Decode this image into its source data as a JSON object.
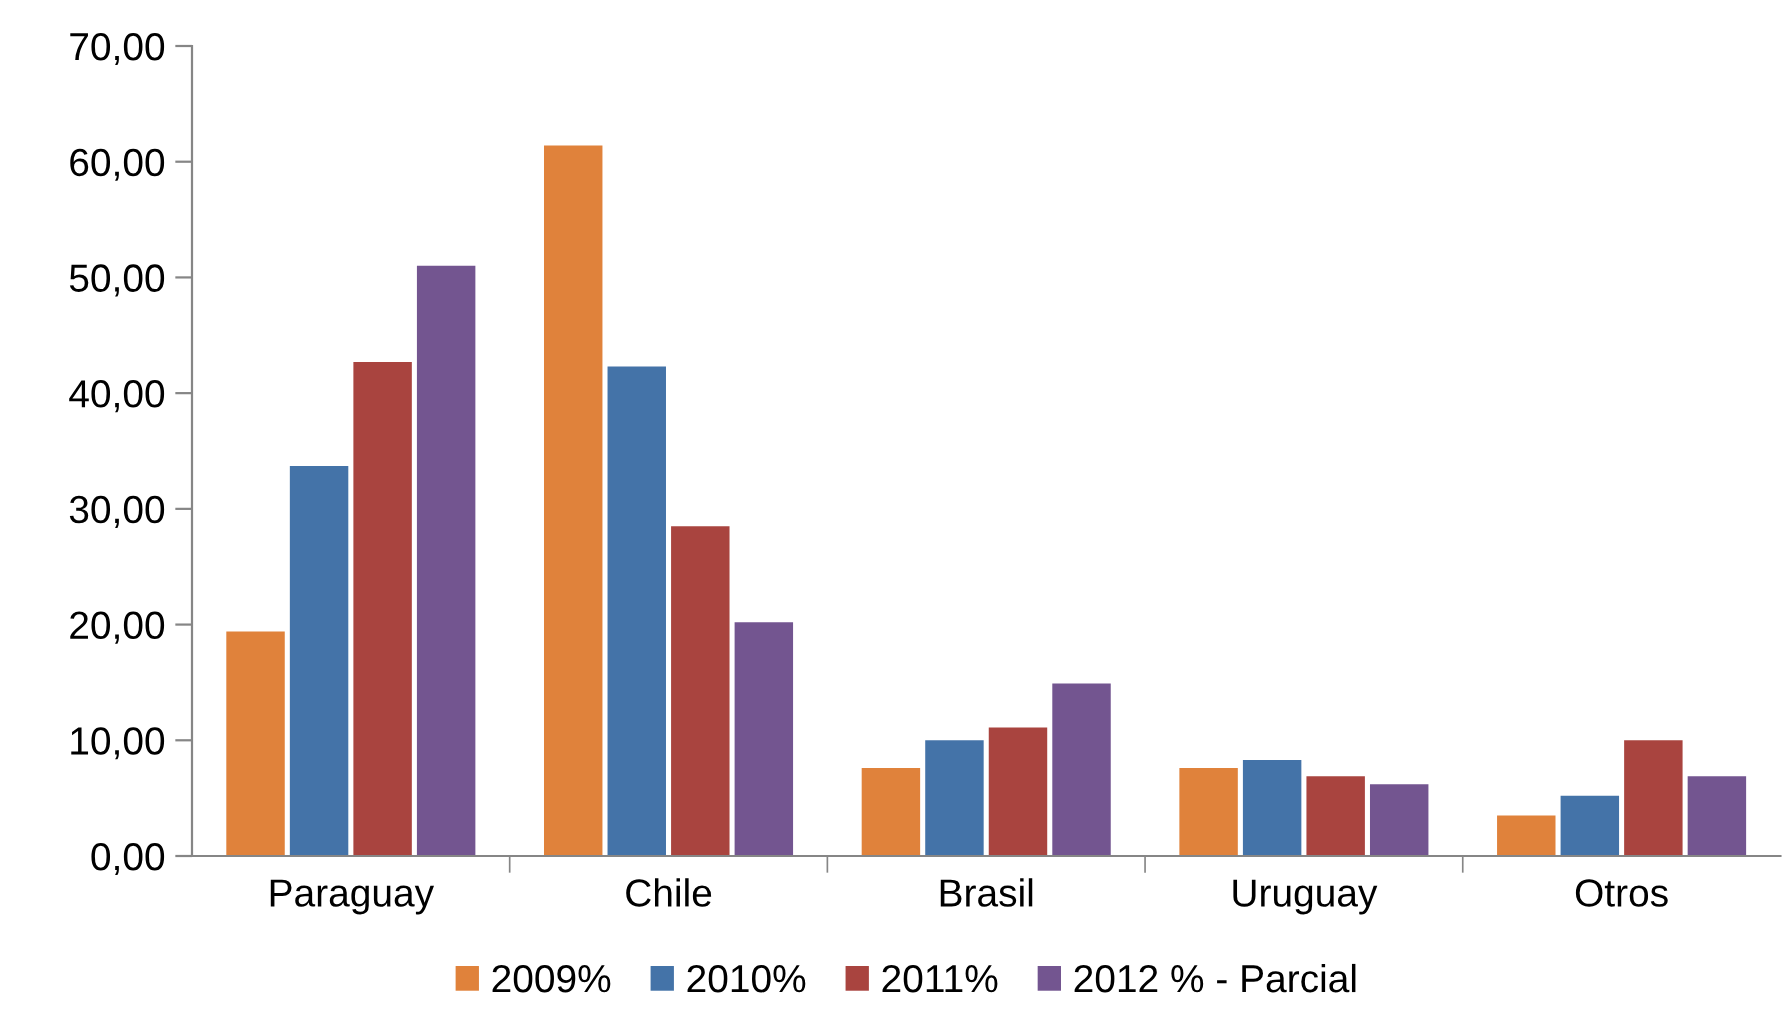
{
  "chart_data": {
    "type": "bar",
    "categories": [
      "Paraguay",
      "Chile",
      "Brasil",
      "Uruguay",
      "Otros"
    ],
    "series": [
      {
        "name": "2009%",
        "color": "#e0823b",
        "values": [
          19.4,
          61.4,
          7.6,
          7.6,
          3.5
        ]
      },
      {
        "name": "2010%",
        "color": "#4473a8",
        "values": [
          33.7,
          42.3,
          10.0,
          8.3,
          5.2
        ]
      },
      {
        "name": "2011%",
        "color": "#a9443f",
        "values": [
          42.7,
          28.5,
          11.1,
          6.9,
          10.0
        ]
      },
      {
        "name": "2012 % - Parcial",
        "color": "#735590",
        "values": [
          51.0,
          20.2,
          14.9,
          6.2,
          6.9
        ]
      }
    ],
    "ylim": [
      0,
      70
    ],
    "yticks": [
      {
        "value": 0,
        "label": "0,00"
      },
      {
        "value": 10,
        "label": "10,00"
      },
      {
        "value": 20,
        "label": "20,00"
      },
      {
        "value": 30,
        "label": "30,00"
      },
      {
        "value": 40,
        "label": "40,00"
      },
      {
        "value": 50,
        "label": "50,00"
      },
      {
        "value": 60,
        "label": "60,00"
      },
      {
        "value": 70,
        "label": "70,00"
      }
    ],
    "grid": false,
    "legend": "bottom"
  }
}
